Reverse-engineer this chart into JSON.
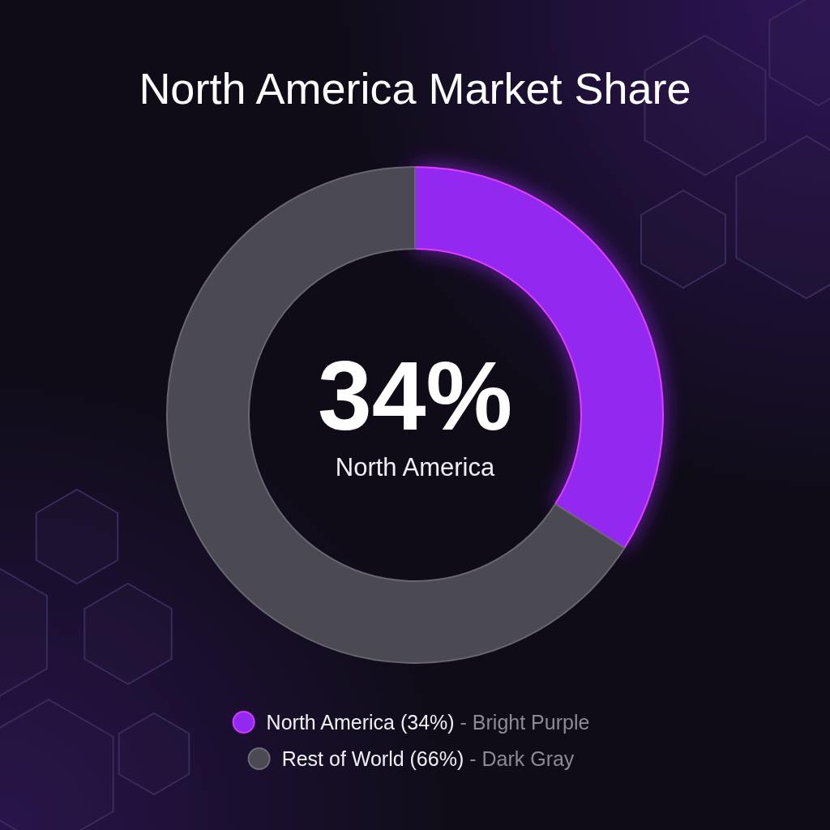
{
  "chart_data": {
    "type": "donut",
    "title": "North America Market Share",
    "categories": [
      "North America (34%)",
      "Rest of World (66%)"
    ],
    "values": [
      34,
      66
    ],
    "colors": [
      "#9328f0",
      "#4b4a52"
    ],
    "legend": "bottom",
    "annotations": [
      "34%",
      "North America",
      "- Bright Purple",
      "- Dark Gray"
    ]
  }
}
